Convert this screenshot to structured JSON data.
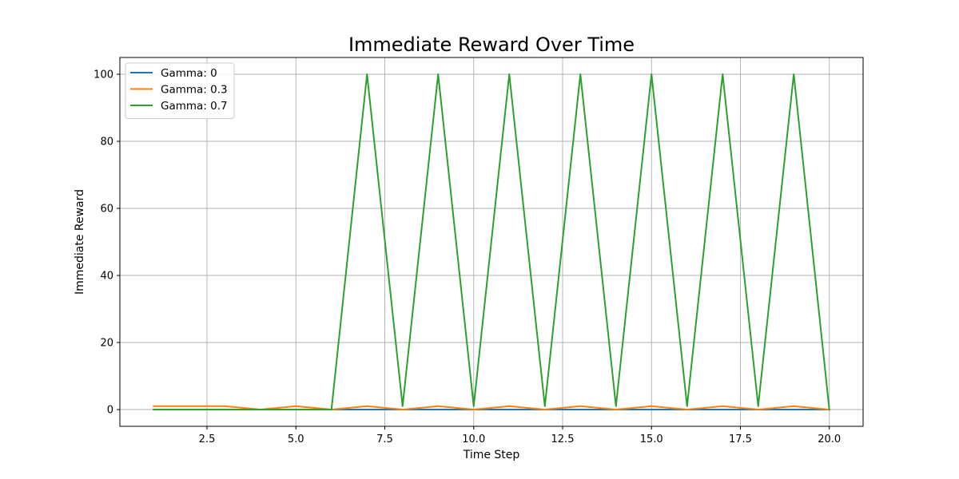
{
  "chart_data": {
    "type": "line",
    "title": "Immediate Reward Over Time",
    "xlabel": "Time Step",
    "ylabel": "Immediate Reward",
    "xlim": [
      0.05,
      20.95
    ],
    "ylim": [
      -5,
      105
    ],
    "xticks": [
      2.5,
      5.0,
      7.5,
      10.0,
      12.5,
      15.0,
      17.5,
      20.0
    ],
    "xtick_labels": [
      "2.5",
      "5.0",
      "7.5",
      "10.0",
      "12.5",
      "15.0",
      "17.5",
      "20.0"
    ],
    "yticks": [
      0,
      20,
      40,
      60,
      80,
      100
    ],
    "ytick_labels": [
      "0",
      "20",
      "40",
      "60",
      "80",
      "100"
    ],
    "grid": true,
    "legend_position": "upper-left",
    "x": [
      1,
      2,
      3,
      4,
      5,
      6,
      7,
      8,
      9,
      10,
      11,
      12,
      13,
      14,
      15,
      16,
      17,
      18,
      19,
      20
    ],
    "series": [
      {
        "name": "Gamma: 0",
        "color": "#1f77b4",
        "values": [
          0,
          0,
          0,
          0,
          0,
          0,
          0,
          0,
          0,
          0,
          0,
          0,
          0,
          0,
          0,
          0,
          0,
          0,
          0,
          0
        ]
      },
      {
        "name": "Gamma: 0.3",
        "color": "#ff7f0e",
        "values": [
          1,
          1,
          1,
          0,
          1,
          0,
          1,
          0,
          1,
          0,
          1,
          0,
          1,
          0,
          1,
          0,
          1,
          0,
          1,
          0
        ]
      },
      {
        "name": "Gamma: 0.7",
        "color": "#2ca02c",
        "values": [
          0,
          0,
          0,
          0,
          0,
          0,
          100,
          1,
          100,
          1,
          100,
          1,
          100,
          1,
          100,
          1,
          100,
          1,
          100,
          0
        ]
      }
    ]
  }
}
